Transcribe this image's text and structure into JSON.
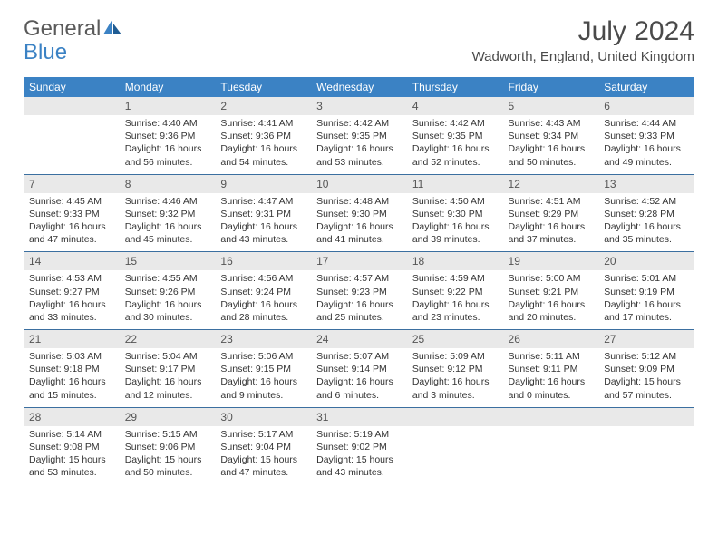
{
  "brand": {
    "part1": "General",
    "part2": "Blue"
  },
  "title": "July 2024",
  "location": "Wadworth, England, United Kingdom",
  "colors": {
    "header_bg": "#3b82c4",
    "header_text": "#ffffff",
    "daynum_bg": "#e9e9e9",
    "rule": "#3b6fa0",
    "logo_gray": "#5a5a5a",
    "logo_blue": "#3b82c4",
    "body_text": "#333333"
  },
  "day_names": [
    "Sunday",
    "Monday",
    "Tuesday",
    "Wednesday",
    "Thursday",
    "Friday",
    "Saturday"
  ],
  "weeks": [
    [
      null,
      {
        "n": "1",
        "sr": "4:40 AM",
        "ss": "9:36 PM",
        "dl": "16 hours and 56 minutes."
      },
      {
        "n": "2",
        "sr": "4:41 AM",
        "ss": "9:36 PM",
        "dl": "16 hours and 54 minutes."
      },
      {
        "n": "3",
        "sr": "4:42 AM",
        "ss": "9:35 PM",
        "dl": "16 hours and 53 minutes."
      },
      {
        "n": "4",
        "sr": "4:42 AM",
        "ss": "9:35 PM",
        "dl": "16 hours and 52 minutes."
      },
      {
        "n": "5",
        "sr": "4:43 AM",
        "ss": "9:34 PM",
        "dl": "16 hours and 50 minutes."
      },
      {
        "n": "6",
        "sr": "4:44 AM",
        "ss": "9:33 PM",
        "dl": "16 hours and 49 minutes."
      }
    ],
    [
      {
        "n": "7",
        "sr": "4:45 AM",
        "ss": "9:33 PM",
        "dl": "16 hours and 47 minutes."
      },
      {
        "n": "8",
        "sr": "4:46 AM",
        "ss": "9:32 PM",
        "dl": "16 hours and 45 minutes."
      },
      {
        "n": "9",
        "sr": "4:47 AM",
        "ss": "9:31 PM",
        "dl": "16 hours and 43 minutes."
      },
      {
        "n": "10",
        "sr": "4:48 AM",
        "ss": "9:30 PM",
        "dl": "16 hours and 41 minutes."
      },
      {
        "n": "11",
        "sr": "4:50 AM",
        "ss": "9:30 PM",
        "dl": "16 hours and 39 minutes."
      },
      {
        "n": "12",
        "sr": "4:51 AM",
        "ss": "9:29 PM",
        "dl": "16 hours and 37 minutes."
      },
      {
        "n": "13",
        "sr": "4:52 AM",
        "ss": "9:28 PM",
        "dl": "16 hours and 35 minutes."
      }
    ],
    [
      {
        "n": "14",
        "sr": "4:53 AM",
        "ss": "9:27 PM",
        "dl": "16 hours and 33 minutes."
      },
      {
        "n": "15",
        "sr": "4:55 AM",
        "ss": "9:26 PM",
        "dl": "16 hours and 30 minutes."
      },
      {
        "n": "16",
        "sr": "4:56 AM",
        "ss": "9:24 PM",
        "dl": "16 hours and 28 minutes."
      },
      {
        "n": "17",
        "sr": "4:57 AM",
        "ss": "9:23 PM",
        "dl": "16 hours and 25 minutes."
      },
      {
        "n": "18",
        "sr": "4:59 AM",
        "ss": "9:22 PM",
        "dl": "16 hours and 23 minutes."
      },
      {
        "n": "19",
        "sr": "5:00 AM",
        "ss": "9:21 PM",
        "dl": "16 hours and 20 minutes."
      },
      {
        "n": "20",
        "sr": "5:01 AM",
        "ss": "9:19 PM",
        "dl": "16 hours and 17 minutes."
      }
    ],
    [
      {
        "n": "21",
        "sr": "5:03 AM",
        "ss": "9:18 PM",
        "dl": "16 hours and 15 minutes."
      },
      {
        "n": "22",
        "sr": "5:04 AM",
        "ss": "9:17 PM",
        "dl": "16 hours and 12 minutes."
      },
      {
        "n": "23",
        "sr": "5:06 AM",
        "ss": "9:15 PM",
        "dl": "16 hours and 9 minutes."
      },
      {
        "n": "24",
        "sr": "5:07 AM",
        "ss": "9:14 PM",
        "dl": "16 hours and 6 minutes."
      },
      {
        "n": "25",
        "sr": "5:09 AM",
        "ss": "9:12 PM",
        "dl": "16 hours and 3 minutes."
      },
      {
        "n": "26",
        "sr": "5:11 AM",
        "ss": "9:11 PM",
        "dl": "16 hours and 0 minutes."
      },
      {
        "n": "27",
        "sr": "5:12 AM",
        "ss": "9:09 PM",
        "dl": "15 hours and 57 minutes."
      }
    ],
    [
      {
        "n": "28",
        "sr": "5:14 AM",
        "ss": "9:08 PM",
        "dl": "15 hours and 53 minutes."
      },
      {
        "n": "29",
        "sr": "5:15 AM",
        "ss": "9:06 PM",
        "dl": "15 hours and 50 minutes."
      },
      {
        "n": "30",
        "sr": "5:17 AM",
        "ss": "9:04 PM",
        "dl": "15 hours and 47 minutes."
      },
      {
        "n": "31",
        "sr": "5:19 AM",
        "ss": "9:02 PM",
        "dl": "15 hours and 43 minutes."
      },
      null,
      null,
      null
    ]
  ],
  "labels": {
    "sunrise": "Sunrise:",
    "sunset": "Sunset:",
    "daylight": "Daylight:"
  }
}
